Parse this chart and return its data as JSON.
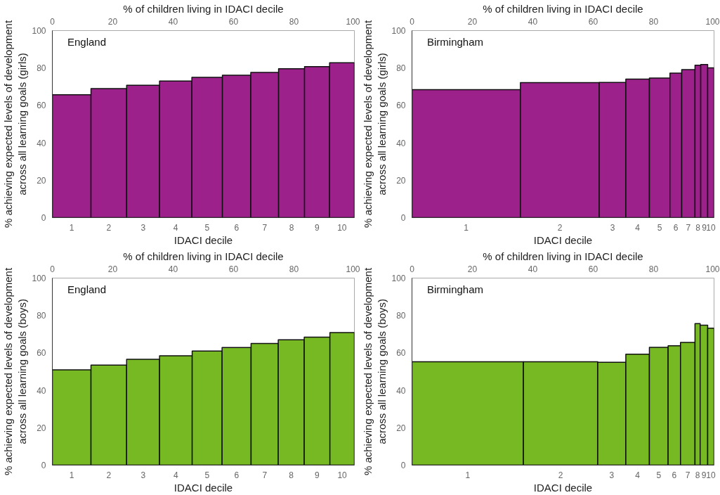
{
  "chart_data": [
    {
      "type": "histogram",
      "title": "England",
      "xlabel": "% of children living in IDACI decile",
      "ylabel": "% achieving expected levels of development\nacross all learning goals (girls)",
      "color": "#9c218b",
      "bins": [
        0,
        12.8,
        24.6,
        35.5,
        46.2,
        56.3,
        65.7,
        74.9,
        83.5,
        91.8,
        100
      ],
      "values": [
        65.7,
        69.0,
        70.8,
        73.0,
        75.0,
        76.1,
        77.6,
        79.6,
        80.7,
        82.8
      ],
      "xlim": [
        0,
        100
      ],
      "xticks": [
        0,
        20,
        40,
        60,
        80,
        100
      ],
      "ylim": [
        0,
        100
      ],
      "yticks": [
        0,
        20,
        40,
        60,
        80,
        100
      ],
      "annotations": [
        "IDACI decile",
        "1",
        "2",
        "3",
        "4",
        "5",
        "6",
        "7",
        "8",
        "9",
        "10"
      ]
    },
    {
      "type": "histogram",
      "title": "Birmingham",
      "xlabel": "% of children living in IDACI decile",
      "ylabel": "% achieving expected levels of development\nacross all learning goals (girls)",
      "color": "#9c218b",
      "bins": [
        0,
        35.9,
        62.0,
        70.8,
        78.6,
        85.4,
        89.3,
        93.7,
        95.6,
        97.9,
        100
      ],
      "values": [
        68.4,
        72.2,
        72.3,
        74.1,
        74.6,
        77.3,
        79.1,
        81.5,
        81.9,
        80.1
      ],
      "xlim": [
        0,
        100
      ],
      "xticks": [
        0,
        20,
        40,
        60,
        80,
        100
      ],
      "ylim": [
        0,
        100
      ],
      "yticks": [
        0,
        20,
        40,
        60,
        80,
        100
      ],
      "annotations": [
        "IDACI decile",
        "1",
        "2",
        "3",
        "4",
        "5",
        "6",
        "7",
        "8",
        "9",
        "10"
      ]
    },
    {
      "type": "histogram",
      "title": "England",
      "xlabel": "% of children living in IDACI decile",
      "ylabel": "% achieving expected levels of development\nacross all learning goals (boys)",
      "color": "#76b922",
      "bins": [
        0,
        12.8,
        24.6,
        35.5,
        46.3,
        56.2,
        65.8,
        74.8,
        83.4,
        91.9,
        100
      ],
      "values": [
        50.9,
        53.5,
        56.6,
        58.5,
        61.0,
        62.9,
        65.0,
        67.0,
        68.4,
        70.9
      ],
      "xlim": [
        0,
        100
      ],
      "xticks": [
        0,
        20,
        40,
        60,
        80,
        100
      ],
      "ylim": [
        0,
        100
      ],
      "yticks": [
        0,
        20,
        40,
        60,
        80,
        100
      ],
      "annotations": [
        "IDACI decile",
        "1",
        "2",
        "3",
        "4",
        "5",
        "6",
        "7",
        "8",
        "9",
        "10"
      ]
    },
    {
      "type": "histogram",
      "title": "Birmingham",
      "xlabel": "% of children living in IDACI decile",
      "ylabel": "% achieving expected levels of development\nacross all learning goals (boys)",
      "color": "#76b922",
      "bins": [
        0,
        36.9,
        61.5,
        70.8,
        78.6,
        84.8,
        88.9,
        93.7,
        95.4,
        97.9,
        100
      ],
      "values": [
        55.3,
        55.3,
        55.0,
        59.3,
        63.0,
        63.8,
        65.6,
        75.7,
        74.8,
        73.2
      ],
      "xlim": [
        0,
        100
      ],
      "xticks": [
        0,
        20,
        40,
        60,
        80,
        100
      ],
      "ylim": [
        0,
        100
      ],
      "yticks": [
        0,
        20,
        40,
        60,
        80,
        100
      ],
      "annotations": [
        "IDACI decile",
        "1",
        "2",
        "3",
        "4",
        "5",
        "6",
        "7",
        "8",
        "9",
        "10"
      ]
    }
  ]
}
